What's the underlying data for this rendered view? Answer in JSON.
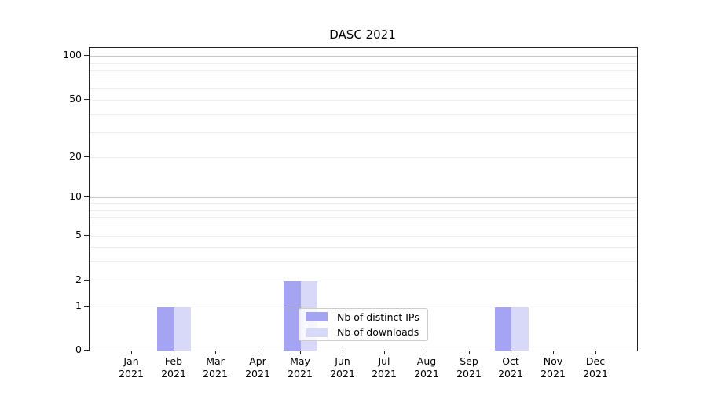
{
  "chart_data": {
    "type": "bar",
    "title": "DASC 2021",
    "categories": [
      "Jan",
      "Feb",
      "Mar",
      "Apr",
      "May",
      "Jun",
      "Jul",
      "Aug",
      "Sep",
      "Oct",
      "Nov",
      "Dec"
    ],
    "category_year": "2021",
    "series": [
      {
        "name": "Nb of distinct IPs",
        "color": "#a4a4f2",
        "values": [
          0,
          1,
          0,
          0,
          2,
          0,
          0,
          0,
          0,
          1,
          0,
          0
        ]
      },
      {
        "name": "Nb of downloads",
        "color": "#d8d8f8",
        "values": [
          0,
          1,
          0,
          0,
          2,
          0,
          0,
          0,
          0,
          1,
          0,
          0
        ]
      }
    ],
    "xlabel": "",
    "ylabel": "",
    "y_axis": {
      "scale": "symlog",
      "tick_values": [
        0,
        1,
        2,
        5,
        10,
        20,
        50,
        100
      ],
      "major_gridline_values": [
        1,
        10,
        100
      ],
      "minor_gridline_values": [
        2,
        3,
        4,
        5,
        6,
        7,
        8,
        9,
        20,
        30,
        40,
        50,
        60,
        70,
        80,
        90
      ],
      "ylim": [
        0,
        113
      ]
    },
    "grid": "horizontal, major and minor",
    "legend": {
      "position": "inside lower-center",
      "entries": [
        "Nb of distinct IPs",
        "Nb of downloads"
      ]
    }
  }
}
